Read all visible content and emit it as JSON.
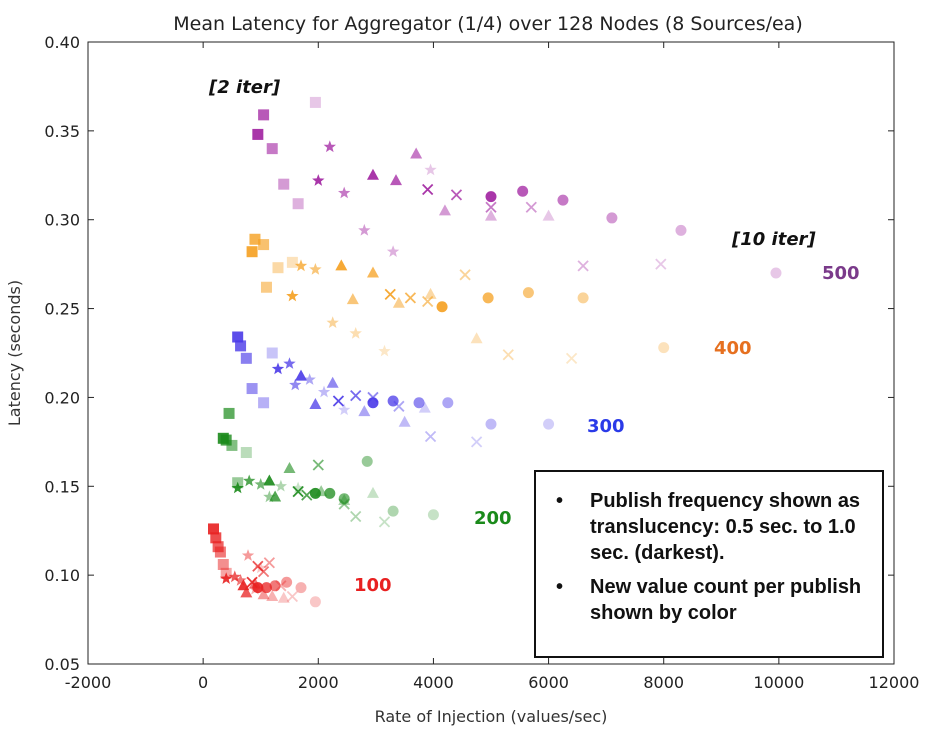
{
  "chart_data": {
    "type": "scatter",
    "title": "Mean Latency for Aggregator (1/4) over 128 Nodes (8 Sources/ea)",
    "xlabel": "Rate of Injection (values/sec)",
    "ylabel": "Latency (seconds)",
    "xlim": [
      -2000,
      12000
    ],
    "ylim": [
      0.05,
      0.4
    ],
    "xticks": [
      "-2000",
      "0",
      "2000",
      "4000",
      "6000",
      "8000",
      "10000",
      "12000"
    ],
    "yticks": [
      "0.05",
      "0.10",
      "0.15",
      "0.20",
      "0.25",
      "0.30",
      "0.35",
      "0.40"
    ],
    "xtick_values": [
      -2000,
      0,
      2000,
      4000,
      6000,
      8000,
      10000,
      12000
    ],
    "ytick_values": [
      0.05,
      0.1,
      0.15,
      0.2,
      0.25,
      0.3,
      0.35,
      0.4
    ],
    "grid": false,
    "annotations": {
      "iter_low": "[2 iter]",
      "iter_high": "[10 iter]"
    },
    "legend_text": [
      "Publish frequency shown as translucency: 0.5 sec. to 1.0 sec. (darkest).",
      "New value count per publish shown by color"
    ],
    "legend_bullet": "•",
    "marker_types": [
      "square",
      "star",
      "triangle",
      "x",
      "circle"
    ],
    "series": [
      {
        "name": "500",
        "color": "#a020a0",
        "points": [
          {
            "x": 950,
            "y": 0.348,
            "m": "square",
            "a": 0.9
          },
          {
            "x": 1050,
            "y": 0.359,
            "m": "square",
            "a": 0.75
          },
          {
            "x": 1200,
            "y": 0.34,
            "m": "square",
            "a": 0.6
          },
          {
            "x": 1400,
            "y": 0.32,
            "m": "square",
            "a": 0.45
          },
          {
            "x": 1650,
            "y": 0.309,
            "m": "square",
            "a": 0.35
          },
          {
            "x": 1950,
            "y": 0.366,
            "m": "square",
            "a": 0.25
          },
          {
            "x": 2000,
            "y": 0.322,
            "m": "star",
            "a": 0.9
          },
          {
            "x": 2200,
            "y": 0.341,
            "m": "star",
            "a": 0.75
          },
          {
            "x": 2450,
            "y": 0.315,
            "m": "star",
            "a": 0.6
          },
          {
            "x": 2800,
            "y": 0.294,
            "m": "star",
            "a": 0.45
          },
          {
            "x": 3300,
            "y": 0.282,
            "m": "star",
            "a": 0.35
          },
          {
            "x": 3950,
            "y": 0.328,
            "m": "star",
            "a": 0.25
          },
          {
            "x": 2950,
            "y": 0.325,
            "m": "triangle",
            "a": 0.9
          },
          {
            "x": 3350,
            "y": 0.322,
            "m": "triangle",
            "a": 0.75
          },
          {
            "x": 3700,
            "y": 0.337,
            "m": "triangle",
            "a": 0.6
          },
          {
            "x": 4200,
            "y": 0.305,
            "m": "triangle",
            "a": 0.45
          },
          {
            "x": 5000,
            "y": 0.302,
            "m": "triangle",
            "a": 0.35
          },
          {
            "x": 6000,
            "y": 0.302,
            "m": "triangle",
            "a": 0.25
          },
          {
            "x": 3900,
            "y": 0.317,
            "m": "x",
            "a": 0.9
          },
          {
            "x": 4400,
            "y": 0.314,
            "m": "x",
            "a": 0.75
          },
          {
            "x": 5000,
            "y": 0.307,
            "m": "x",
            "a": 0.6
          },
          {
            "x": 5700,
            "y": 0.307,
            "m": "x",
            "a": 0.45
          },
          {
            "x": 6600,
            "y": 0.274,
            "m": "x",
            "a": 0.35
          },
          {
            "x": 7950,
            "y": 0.275,
            "m": "x",
            "a": 0.25
          },
          {
            "x": 5000,
            "y": 0.313,
            "m": "circle",
            "a": 0.9
          },
          {
            "x": 5550,
            "y": 0.316,
            "m": "circle",
            "a": 0.75
          },
          {
            "x": 6250,
            "y": 0.311,
            "m": "circle",
            "a": 0.6
          },
          {
            "x": 7100,
            "y": 0.301,
            "m": "circle",
            "a": 0.45
          },
          {
            "x": 8300,
            "y": 0.294,
            "m": "circle",
            "a": 0.35
          },
          {
            "x": 9950,
            "y": 0.27,
            "m": "circle",
            "a": 0.25
          }
        ]
      },
      {
        "name": "400",
        "color": "#f5a020",
        "points": [
          {
            "x": 850,
            "y": 0.282,
            "m": "square",
            "a": 0.9
          },
          {
            "x": 900,
            "y": 0.289,
            "m": "square",
            "a": 0.8
          },
          {
            "x": 1050,
            "y": 0.286,
            "m": "square",
            "a": 0.65
          },
          {
            "x": 1100,
            "y": 0.262,
            "m": "square",
            "a": 0.55
          },
          {
            "x": 1300,
            "y": 0.273,
            "m": "square",
            "a": 0.4
          },
          {
            "x": 1550,
            "y": 0.276,
            "m": "square",
            "a": 0.3
          },
          {
            "x": 1550,
            "y": 0.257,
            "m": "star",
            "a": 0.9
          },
          {
            "x": 1700,
            "y": 0.274,
            "m": "star",
            "a": 0.75
          },
          {
            "x": 1950,
            "y": 0.272,
            "m": "star",
            "a": 0.6
          },
          {
            "x": 2250,
            "y": 0.242,
            "m": "star",
            "a": 0.45
          },
          {
            "x": 2650,
            "y": 0.236,
            "m": "star",
            "a": 0.35
          },
          {
            "x": 3150,
            "y": 0.226,
            "m": "star",
            "a": 0.25
          },
          {
            "x": 2400,
            "y": 0.274,
            "m": "triangle",
            "a": 0.9
          },
          {
            "x": 2950,
            "y": 0.27,
            "m": "triangle",
            "a": 0.75
          },
          {
            "x": 2600,
            "y": 0.255,
            "m": "triangle",
            "a": 0.6
          },
          {
            "x": 3400,
            "y": 0.253,
            "m": "triangle",
            "a": 0.5
          },
          {
            "x": 3950,
            "y": 0.258,
            "m": "triangle",
            "a": 0.4
          },
          {
            "x": 4750,
            "y": 0.233,
            "m": "triangle",
            "a": 0.3
          },
          {
            "x": 3250,
            "y": 0.258,
            "m": "x",
            "a": 0.9
          },
          {
            "x": 3600,
            "y": 0.256,
            "m": "x",
            "a": 0.75
          },
          {
            "x": 3900,
            "y": 0.254,
            "m": "x",
            "a": 0.6
          },
          {
            "x": 4550,
            "y": 0.269,
            "m": "x",
            "a": 0.45
          },
          {
            "x": 5300,
            "y": 0.224,
            "m": "x",
            "a": 0.35
          },
          {
            "x": 6400,
            "y": 0.222,
            "m": "x",
            "a": 0.25
          },
          {
            "x": 4150,
            "y": 0.251,
            "m": "circle",
            "a": 0.9
          },
          {
            "x": 4950,
            "y": 0.256,
            "m": "circle",
            "a": 0.75
          },
          {
            "x": 5650,
            "y": 0.259,
            "m": "circle",
            "a": 0.6
          },
          {
            "x": 6600,
            "y": 0.256,
            "m": "circle",
            "a": 0.45
          },
          {
            "x": 8000,
            "y": 0.228,
            "m": "circle",
            "a": 0.3
          }
        ]
      },
      {
        "name": "300",
        "color": "#4a3ae8",
        "points": [
          {
            "x": 600,
            "y": 0.234,
            "m": "square",
            "a": 0.9
          },
          {
            "x": 650,
            "y": 0.229,
            "m": "square",
            "a": 0.8
          },
          {
            "x": 750,
            "y": 0.222,
            "m": "square",
            "a": 0.65
          },
          {
            "x": 850,
            "y": 0.205,
            "m": "square",
            "a": 0.55
          },
          {
            "x": 1050,
            "y": 0.197,
            "m": "square",
            "a": 0.4
          },
          {
            "x": 1200,
            "y": 0.225,
            "m": "square",
            "a": 0.3
          },
          {
            "x": 1300,
            "y": 0.216,
            "m": "star",
            "a": 0.9
          },
          {
            "x": 1500,
            "y": 0.219,
            "m": "star",
            "a": 0.75
          },
          {
            "x": 1600,
            "y": 0.207,
            "m": "star",
            "a": 0.6
          },
          {
            "x": 1850,
            "y": 0.21,
            "m": "star",
            "a": 0.45
          },
          {
            "x": 2100,
            "y": 0.203,
            "m": "star",
            "a": 0.35
          },
          {
            "x": 2450,
            "y": 0.193,
            "m": "star",
            "a": 0.25
          },
          {
            "x": 1700,
            "y": 0.212,
            "m": "triangle",
            "a": 0.9
          },
          {
            "x": 1950,
            "y": 0.196,
            "m": "triangle",
            "a": 0.75
          },
          {
            "x": 2250,
            "y": 0.208,
            "m": "triangle",
            "a": 0.6
          },
          {
            "x": 2800,
            "y": 0.192,
            "m": "triangle",
            "a": 0.45
          },
          {
            "x": 3500,
            "y": 0.186,
            "m": "triangle",
            "a": 0.35
          },
          {
            "x": 3850,
            "y": 0.194,
            "m": "triangle",
            "a": 0.25
          },
          {
            "x": 2350,
            "y": 0.198,
            "m": "x",
            "a": 0.9
          },
          {
            "x": 2650,
            "y": 0.201,
            "m": "x",
            "a": 0.75
          },
          {
            "x": 2950,
            "y": 0.2,
            "m": "x",
            "a": 0.6
          },
          {
            "x": 3400,
            "y": 0.195,
            "m": "x",
            "a": 0.45
          },
          {
            "x": 3950,
            "y": 0.178,
            "m": "x",
            "a": 0.35
          },
          {
            "x": 4750,
            "y": 0.175,
            "m": "x",
            "a": 0.25
          },
          {
            "x": 2950,
            "y": 0.197,
            "m": "circle",
            "a": 0.9
          },
          {
            "x": 3300,
            "y": 0.198,
            "m": "circle",
            "a": 0.75
          },
          {
            "x": 3750,
            "y": 0.197,
            "m": "circle",
            "a": 0.6
          },
          {
            "x": 4250,
            "y": 0.197,
            "m": "circle",
            "a": 0.45
          },
          {
            "x": 5000,
            "y": 0.185,
            "m": "circle",
            "a": 0.35
          },
          {
            "x": 6000,
            "y": 0.185,
            "m": "circle",
            "a": 0.25
          }
        ]
      },
      {
        "name": "200",
        "color": "#1a8a1a",
        "points": [
          {
            "x": 350,
            "y": 0.177,
            "m": "square",
            "a": 0.9
          },
          {
            "x": 400,
            "y": 0.176,
            "m": "square",
            "a": 0.8
          },
          {
            "x": 450,
            "y": 0.191,
            "m": "square",
            "a": 0.7
          },
          {
            "x": 500,
            "y": 0.173,
            "m": "square",
            "a": 0.55
          },
          {
            "x": 600,
            "y": 0.152,
            "m": "square",
            "a": 0.45
          },
          {
            "x": 750,
            "y": 0.169,
            "m": "square",
            "a": 0.3
          },
          {
            "x": 600,
            "y": 0.149,
            "m": "star",
            "a": 0.9
          },
          {
            "x": 800,
            "y": 0.153,
            "m": "star",
            "a": 0.75
          },
          {
            "x": 1000,
            "y": 0.151,
            "m": "star",
            "a": 0.6
          },
          {
            "x": 1150,
            "y": 0.144,
            "m": "star",
            "a": 0.45
          },
          {
            "x": 1350,
            "y": 0.15,
            "m": "star",
            "a": 0.35
          },
          {
            "x": 1650,
            "y": 0.149,
            "m": "star",
            "a": 0.25
          },
          {
            "x": 1150,
            "y": 0.153,
            "m": "triangle",
            "a": 0.9
          },
          {
            "x": 1250,
            "y": 0.144,
            "m": "triangle",
            "a": 0.75
          },
          {
            "x": 1500,
            "y": 0.16,
            "m": "triangle",
            "a": 0.6
          },
          {
            "x": 2050,
            "y": 0.147,
            "m": "triangle",
            "a": 0.45
          },
          {
            "x": 2450,
            "y": 0.142,
            "m": "triangle",
            "a": 0.35
          },
          {
            "x": 2950,
            "y": 0.146,
            "m": "triangle",
            "a": 0.25
          },
          {
            "x": 1650,
            "y": 0.147,
            "m": "x",
            "a": 0.9
          },
          {
            "x": 1800,
            "y": 0.145,
            "m": "x",
            "a": 0.75
          },
          {
            "x": 2000,
            "y": 0.162,
            "m": "x",
            "a": 0.6
          },
          {
            "x": 2450,
            "y": 0.14,
            "m": "x",
            "a": 0.45
          },
          {
            "x": 2650,
            "y": 0.133,
            "m": "x",
            "a": 0.35
          },
          {
            "x": 3150,
            "y": 0.13,
            "m": "x",
            "a": 0.25
          },
          {
            "x": 1950,
            "y": 0.146,
            "m": "circle",
            "a": 0.9
          },
          {
            "x": 2200,
            "y": 0.146,
            "m": "circle",
            "a": 0.75
          },
          {
            "x": 2450,
            "y": 0.143,
            "m": "circle",
            "a": 0.6
          },
          {
            "x": 2850,
            "y": 0.164,
            "m": "circle",
            "a": 0.45
          },
          {
            "x": 3300,
            "y": 0.136,
            "m": "circle",
            "a": 0.35
          },
          {
            "x": 4000,
            "y": 0.134,
            "m": "circle",
            "a": 0.25
          }
        ]
      },
      {
        "name": "100",
        "color": "#e82020",
        "points": [
          {
            "x": 180,
            "y": 0.126,
            "m": "square",
            "a": 0.9
          },
          {
            "x": 220,
            "y": 0.121,
            "m": "square",
            "a": 0.8
          },
          {
            "x": 260,
            "y": 0.116,
            "m": "square",
            "a": 0.7
          },
          {
            "x": 300,
            "y": 0.113,
            "m": "square",
            "a": 0.6
          },
          {
            "x": 350,
            "y": 0.106,
            "m": "square",
            "a": 0.5
          },
          {
            "x": 400,
            "y": 0.101,
            "m": "square",
            "a": 0.4
          },
          {
            "x": 400,
            "y": 0.098,
            "m": "star",
            "a": 0.9
          },
          {
            "x": 550,
            "y": 0.099,
            "m": "star",
            "a": 0.75
          },
          {
            "x": 650,
            "y": 0.097,
            "m": "star",
            "a": 0.6
          },
          {
            "x": 780,
            "y": 0.111,
            "m": "star",
            "a": 0.45
          },
          {
            "x": 900,
            "y": 0.092,
            "m": "star",
            "a": 0.35
          },
          {
            "x": 1000,
            "y": 0.104,
            "m": "star",
            "a": 0.25
          },
          {
            "x": 700,
            "y": 0.094,
            "m": "triangle",
            "a": 0.9
          },
          {
            "x": 750,
            "y": 0.09,
            "m": "triangle",
            "a": 0.75
          },
          {
            "x": 900,
            "y": 0.095,
            "m": "triangle",
            "a": 0.6
          },
          {
            "x": 1050,
            "y": 0.089,
            "m": "triangle",
            "a": 0.45
          },
          {
            "x": 1200,
            "y": 0.088,
            "m": "triangle",
            "a": 0.35
          },
          {
            "x": 1400,
            "y": 0.087,
            "m": "triangle",
            "a": 0.25
          },
          {
            "x": 850,
            "y": 0.096,
            "m": "x",
            "a": 0.9
          },
          {
            "x": 950,
            "y": 0.105,
            "m": "x",
            "a": 0.75
          },
          {
            "x": 1050,
            "y": 0.102,
            "m": "x",
            "a": 0.6
          },
          {
            "x": 1150,
            "y": 0.107,
            "m": "x",
            "a": 0.45
          },
          {
            "x": 1350,
            "y": 0.094,
            "m": "x",
            "a": 0.35
          },
          {
            "x": 1550,
            "y": 0.088,
            "m": "x",
            "a": 0.25
          },
          {
            "x": 950,
            "y": 0.093,
            "m": "circle",
            "a": 0.9
          },
          {
            "x": 1100,
            "y": 0.093,
            "m": "circle",
            "a": 0.75
          },
          {
            "x": 1250,
            "y": 0.094,
            "m": "circle",
            "a": 0.6
          },
          {
            "x": 1450,
            "y": 0.096,
            "m": "circle",
            "a": 0.45
          },
          {
            "x": 1700,
            "y": 0.093,
            "m": "circle",
            "a": 0.35
          },
          {
            "x": 1950,
            "y": 0.085,
            "m": "circle",
            "a": 0.25
          }
        ]
      }
    ],
    "series_label_colors": {
      "500": "#7a3a8a",
      "400": "#e67020",
      "300": "#2a3ae8",
      "200": "#1a8a1a",
      "100": "#e82020"
    }
  }
}
